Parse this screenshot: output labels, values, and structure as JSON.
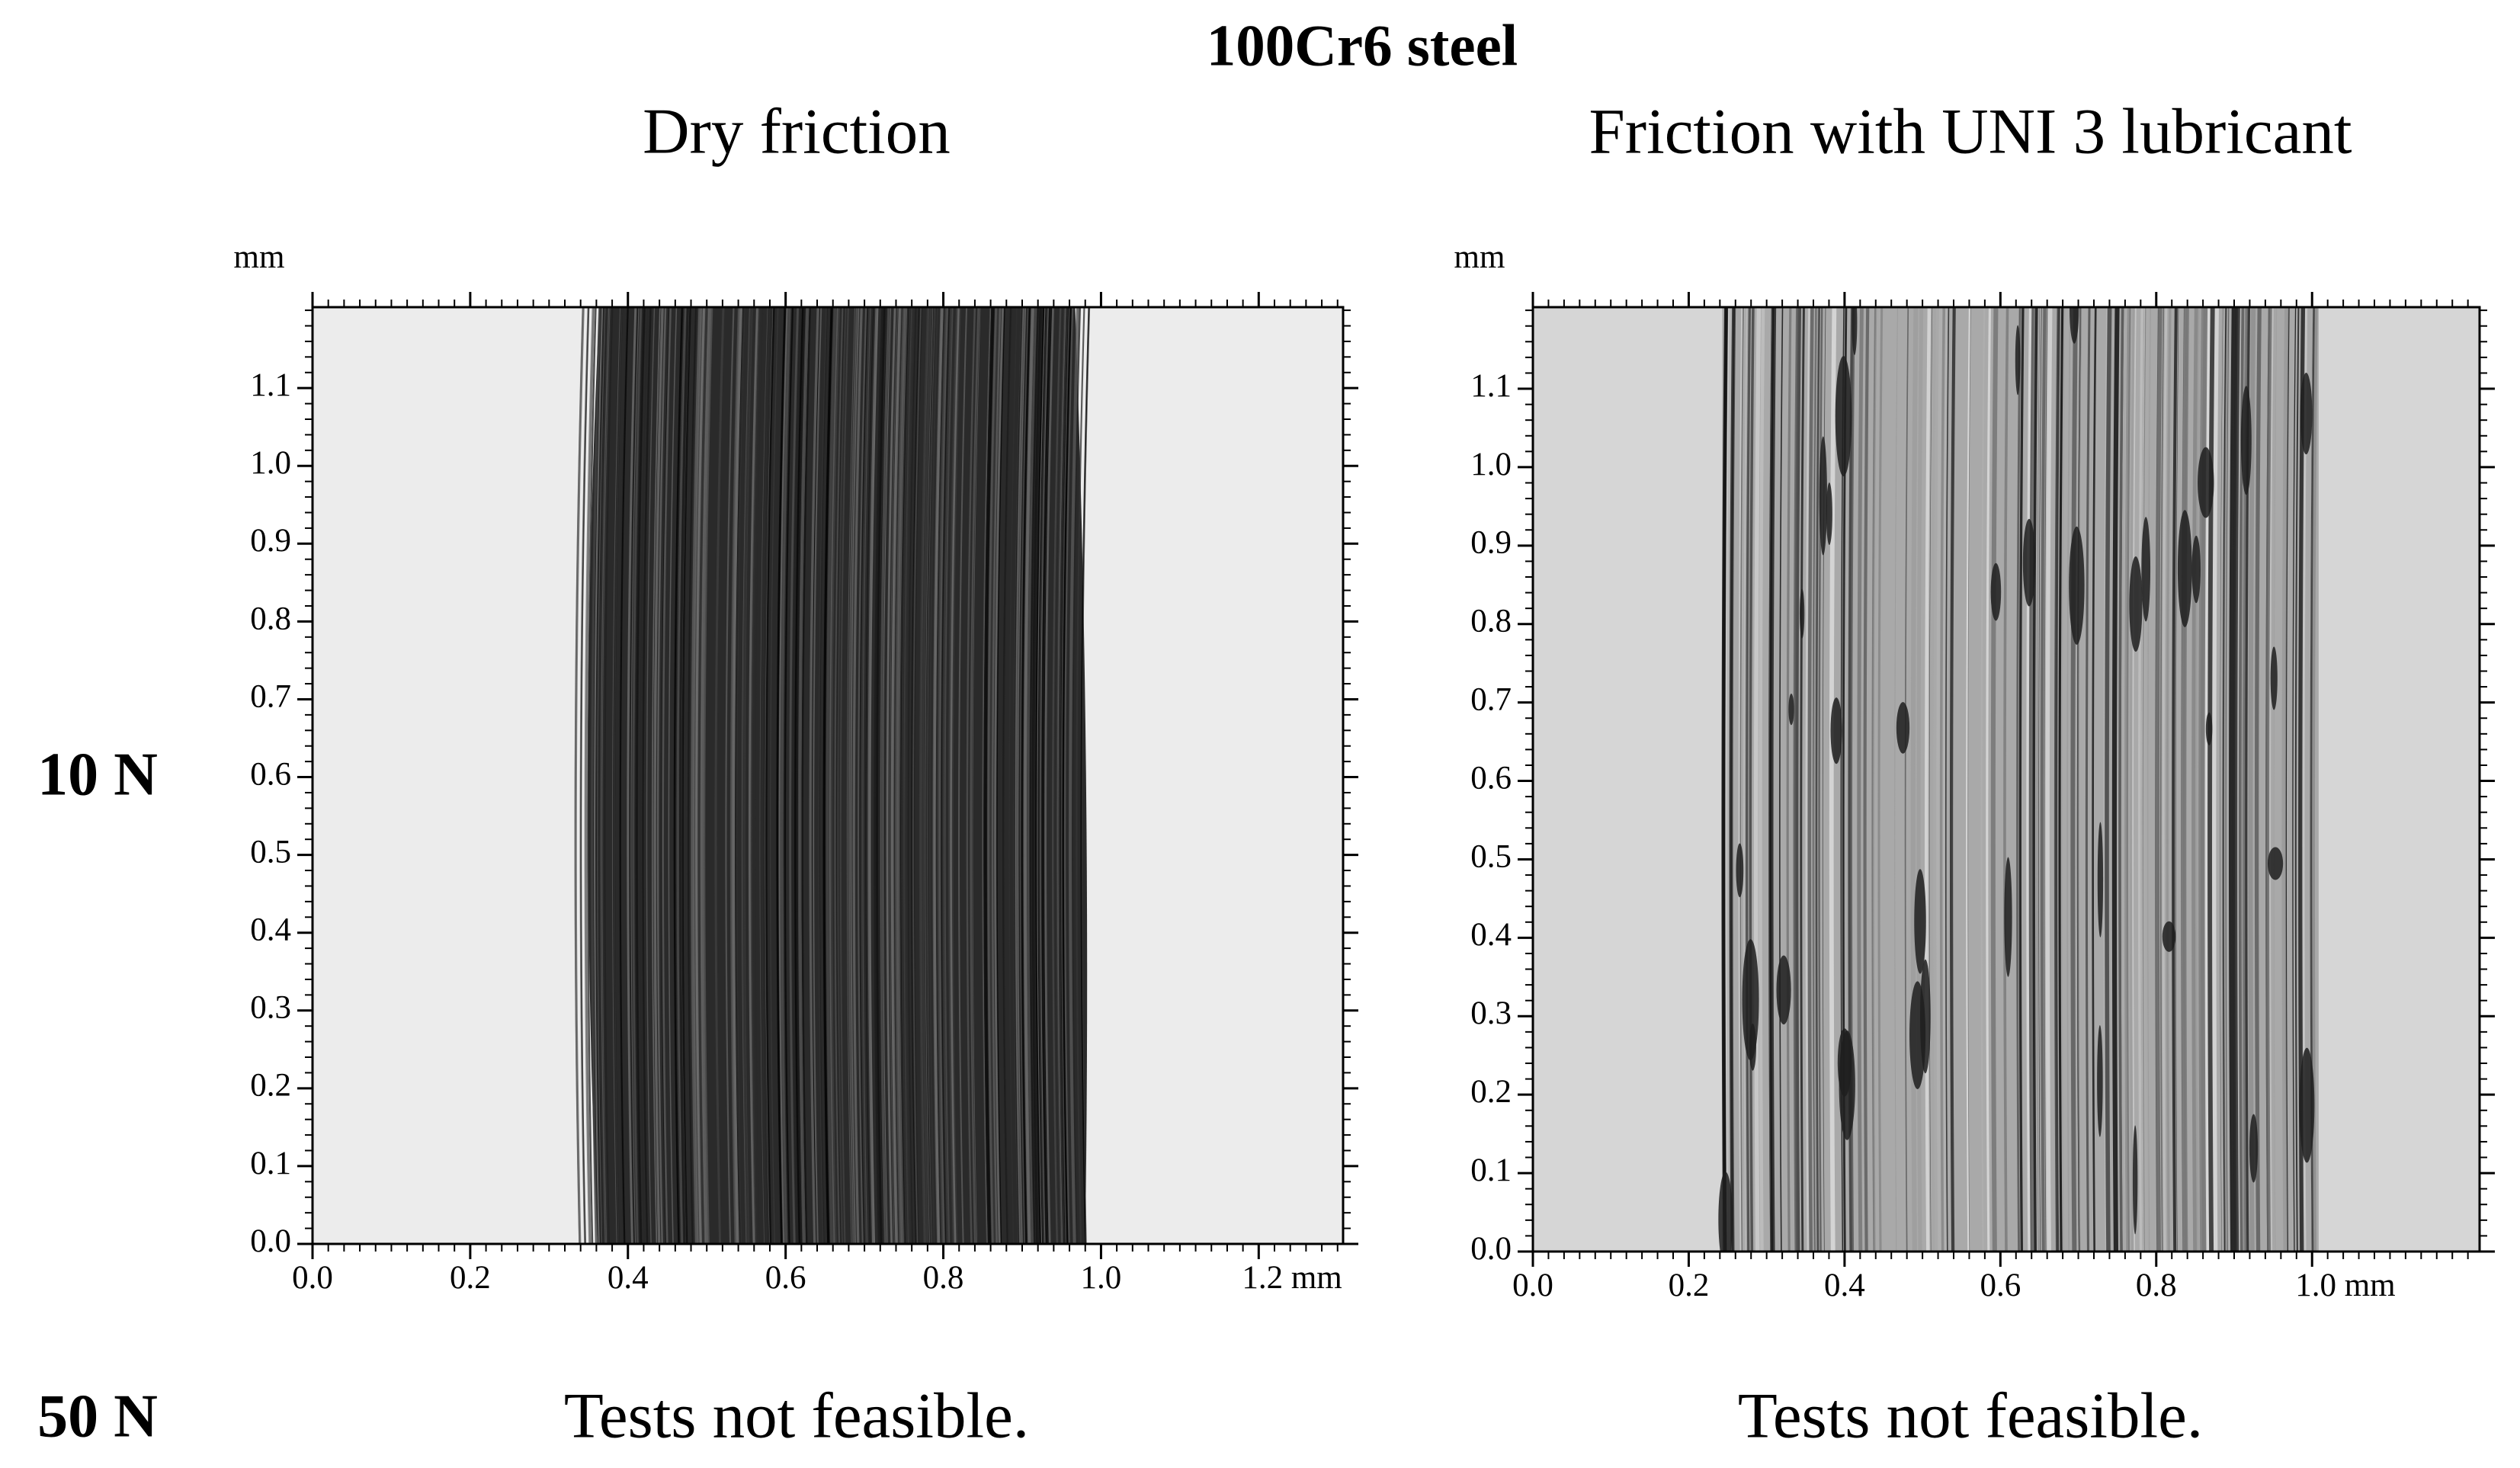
{
  "title": "100Cr6 steel",
  "columns": [
    "Dry friction",
    "Friction with UNI 3 lubricant"
  ],
  "rows": [
    "10 N",
    "50 N"
  ],
  "panels": [
    {
      "unit_label": "mm",
      "xlim": [
        0,
        1.307
      ],
      "ylim": [
        0,
        1.204
      ],
      "xticks": [
        {
          "value": 0,
          "label": "0.0"
        },
        0.2,
        0.4,
        0.6,
        0.8,
        {
          "value": 1,
          "label": "1.0"
        },
        {
          "value": 1.2,
          "label": "1.2 mm"
        }
      ],
      "yticks": [
        {
          "value": 0,
          "label": "0.0"
        },
        0.1,
        0.2,
        0.3,
        0.4,
        0.5,
        0.6,
        0.7,
        0.8,
        0.9,
        {
          "value": 1,
          "label": "1.0"
        },
        1.1
      ]
    },
    {
      "unit_label": "mm",
      "xlim": [
        0,
        1.215
      ],
      "ylim": [
        0,
        1.204
      ],
      "xticks": [
        {
          "value": 0,
          "label": "0.0"
        },
        0.2,
        0.4,
        0.6,
        0.8,
        {
          "value": 1,
          "label": "1.0 mm"
        }
      ],
      "yticks": [
        {
          "value": 0,
          "label": "0.0"
        },
        0.1,
        0.2,
        0.3,
        0.4,
        0.5,
        0.6,
        0.7,
        0.8,
        0.9,
        {
          "value": 1,
          "label": "1.0"
        },
        1.1
      ]
    }
  ],
  "notes": [
    "Tests not feasible.",
    "Tests not feasible."
  ]
}
